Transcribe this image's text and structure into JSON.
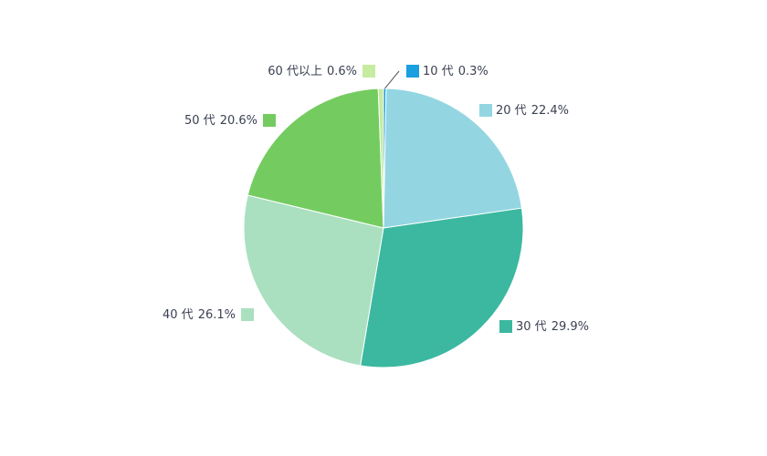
{
  "chart_data": {
    "type": "pie",
    "categories": [
      "10 代",
      "20 代",
      "30 代",
      "40 代",
      "50 代",
      "60 代以上"
    ],
    "values": [
      0.3,
      22.4,
      29.9,
      26.1,
      20.6,
      0.6
    ],
    "value_labels": [
      "0.3%",
      "22.4%",
      "29.9%",
      "26.1%",
      "20.6%",
      "0.6%"
    ],
    "colors": [
      "#1a9fe0",
      "#93d6e2",
      "#3cb8a0",
      "#aae0c0",
      "#74cc60",
      "#c5eca0"
    ]
  }
}
